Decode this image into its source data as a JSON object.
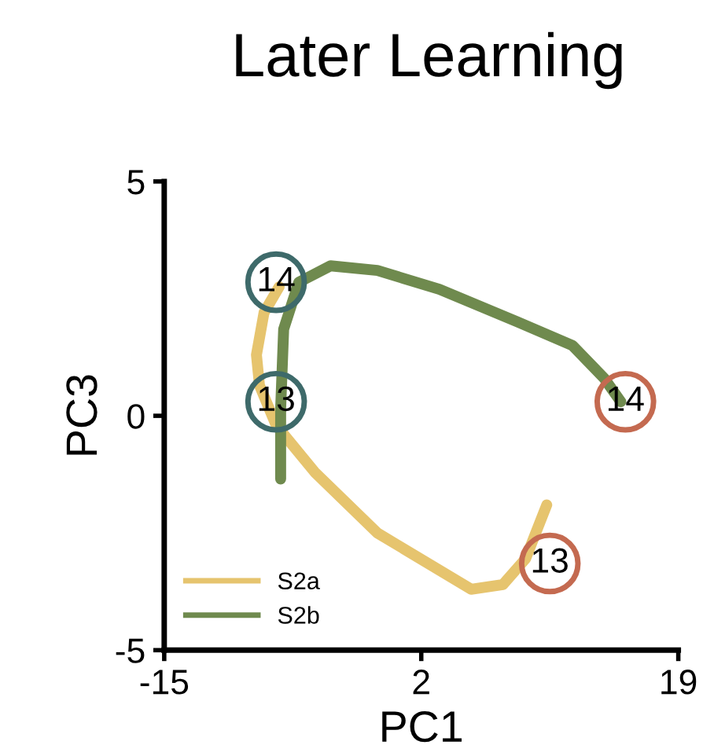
{
  "chart_data": {
    "type": "line",
    "title": "Later Learning",
    "xlabel": "PC1",
    "ylabel": "PC3",
    "xlim": [
      -15,
      19
    ],
    "ylim": [
      -5,
      5
    ],
    "xticks": [
      -15,
      2,
      19
    ],
    "yticks": [
      -5,
      0,
      5
    ],
    "grid": false,
    "legend": "bottom left",
    "marker": "none",
    "line_style": "solid",
    "series": [
      {
        "name": "S2a",
        "color": "#e6c46e",
        "x": [
          10.3,
          8.9,
          7.4,
          5.3,
          -0.9,
          -5.05,
          -7.6,
          -8.7,
          -8.9,
          -8.4,
          -7.4
        ],
        "values": [
          -1.9,
          -3.05,
          -3.6,
          -3.7,
          -2.5,
          -1.2,
          -0.2,
          0.65,
          1.3,
          2.2,
          2.75
        ]
      },
      {
        "name": "S2b",
        "color": "#6f8a4e",
        "x": [
          -7.3,
          -7.3,
          -7.1,
          -6.1,
          -4.0,
          -0.9,
          3.2,
          8.4,
          12.0,
          14.1,
          15.2
        ],
        "values": [
          -1.35,
          0.15,
          1.85,
          2.85,
          3.2,
          3.1,
          2.7,
          2.0,
          1.5,
          0.8,
          0.3
        ]
      }
    ],
    "annotations": [
      {
        "text": "14",
        "x": -7.6,
        "y": 2.85
      },
      {
        "text": "13",
        "x": -7.6,
        "y": 0.3
      },
      {
        "text": "14",
        "x": 15.5,
        "y": 0.3
      },
      {
        "text": "13",
        "x": 10.5,
        "y": -3.15
      }
    ]
  }
}
